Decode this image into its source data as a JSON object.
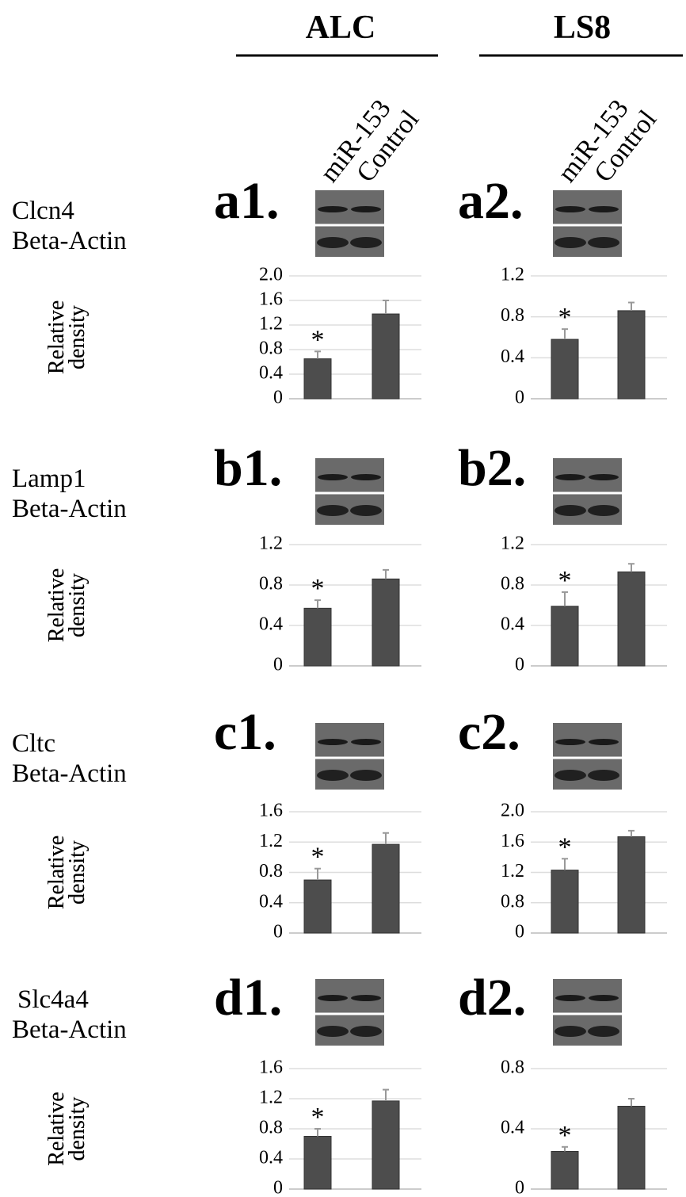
{
  "columns": [
    {
      "name": "ALC",
      "lanes": [
        "miR-153",
        "Control"
      ]
    },
    {
      "name": "LS8",
      "lanes": [
        "miR-153",
        "Control"
      ]
    }
  ],
  "rows": [
    {
      "protein": "Clcn4",
      "control": "Beta-Actin"
    },
    {
      "protein": "Lamp1",
      "control": "Beta-Actin"
    },
    {
      "protein": "Cltc",
      "control": "Beta-Actin"
    },
    {
      "protein": "Slc4a4",
      "control": "Beta-Actin"
    }
  ],
  "chart_data": [
    {
      "type": "bar",
      "title": "a1.",
      "ylabel": [
        "Relative",
        "density"
      ],
      "ylim": [
        0,
        2
      ],
      "yticks": [
        0,
        0.4,
        0.8,
        1.2,
        1.6,
        {
          "value": 2,
          "label": "2.0"
        }
      ],
      "values": [
        0.65,
        1.38
      ],
      "errors": [
        0.12,
        0.22
      ],
      "annotation": "*",
      "color": "#4d4d4d",
      "grid": true
    },
    {
      "type": "bar",
      "title": "a2.",
      "ylabel": [
        "Relative",
        "density"
      ],
      "ylim": [
        0,
        1.2
      ],
      "yticks": [
        0,
        0.4,
        0.8,
        1.2
      ],
      "values": [
        0.58,
        0.86
      ],
      "errors": [
        0.1,
        0.08
      ],
      "annotation": "*",
      "color": "#4d4d4d",
      "grid": true
    },
    {
      "type": "bar",
      "title": "b1.",
      "ylabel": [
        "Relative",
        "density"
      ],
      "ylim": [
        0,
        1.2
      ],
      "yticks": [
        0,
        0.4,
        0.8,
        1.2
      ],
      "values": [
        0.57,
        0.86
      ],
      "errors": [
        0.08,
        0.09
      ],
      "annotation": "*",
      "color": "#4d4d4d",
      "grid": true
    },
    {
      "type": "bar",
      "title": "b2.",
      "ylabel": [
        "Relative",
        "density"
      ],
      "ylim": [
        0,
        1.2
      ],
      "yticks": [
        0,
        0.4,
        0.8,
        1.2
      ],
      "values": [
        0.59,
        0.93
      ],
      "errors": [
        0.14,
        0.08
      ],
      "annotation": "*",
      "color": "#4d4d4d",
      "grid": true
    },
    {
      "type": "bar",
      "title": "c1.",
      "ylabel": [
        "Relative",
        "density"
      ],
      "ylim": [
        0,
        1.6
      ],
      "yticks": [
        0,
        0.4,
        0.8,
        1.2,
        1.6
      ],
      "values": [
        0.7,
        1.17
      ],
      "errors": [
        0.15,
        0.15
      ],
      "annotation": "*",
      "color": "#4d4d4d",
      "grid": true
    },
    {
      "type": "bar",
      "title": "c2.",
      "ylabel": [
        "Relative",
        "density"
      ],
      "ylim": [
        0,
        2
      ],
      "yticks": [
        0,
        0.8,
        1.2,
        1.6,
        {
          "value": 2,
          "label": "2.0"
        }
      ],
      "values": [
        1.23,
        1.67
      ],
      "errors": [
        0.15,
        0.08
      ],
      "annotation": "*",
      "color": "#4d4d4d",
      "grid": true
    },
    {
      "type": "bar",
      "title": "d1.",
      "ylabel": [
        "Relative",
        "density"
      ],
      "ylim": [
        0,
        1.6
      ],
      "yticks": [
        0,
        0.4,
        0.8,
        1.2,
        1.6
      ],
      "values": [
        0.7,
        1.17
      ],
      "errors": [
        0.1,
        0.15
      ],
      "annotation": "*",
      "color": "#4d4d4d",
      "grid": true
    },
    {
      "type": "bar",
      "title": "d2.",
      "ylabel": [
        "Relative",
        "density"
      ],
      "ylim": [
        0,
        0.8
      ],
      "yticks": [
        0,
        0.4,
        0.8
      ],
      "values": [
        0.25,
        0.55
      ],
      "errors": [
        0.03,
        0.05
      ],
      "annotation": "*",
      "color": "#4d4d4d",
      "grid": true
    }
  ]
}
